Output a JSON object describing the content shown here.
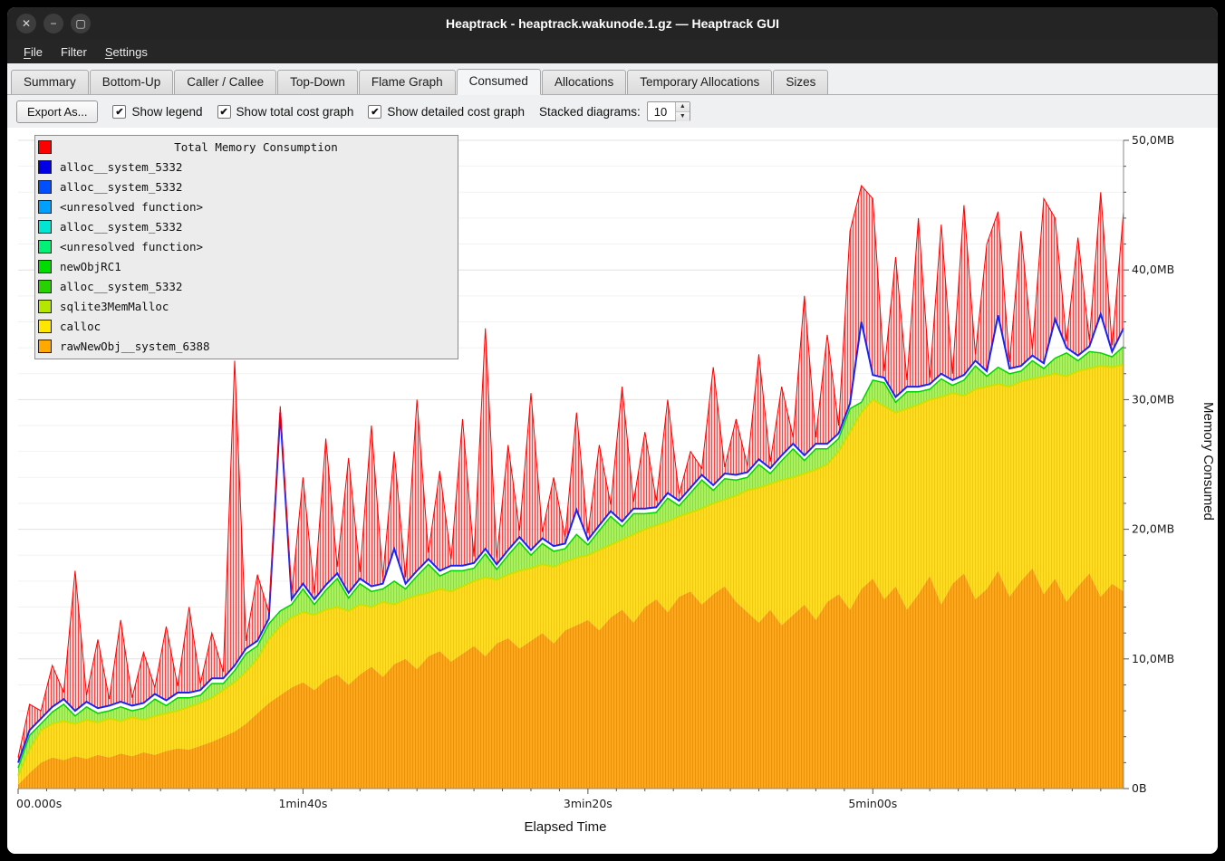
{
  "window": {
    "title": "Heaptrack - heaptrack.wakunode.1.gz — Heaptrack GUI",
    "controls": [
      {
        "name": "close",
        "glyph": "✕"
      },
      {
        "name": "minimize",
        "glyph": "−"
      },
      {
        "name": "maximize",
        "glyph": "▢"
      }
    ]
  },
  "menu": {
    "items": [
      {
        "label": "File",
        "underline": 0
      },
      {
        "label": "Filter",
        "underline": -1
      },
      {
        "label": "Settings",
        "underline": 0
      }
    ]
  },
  "tabs": [
    {
      "label": "Summary",
      "active": false
    },
    {
      "label": "Bottom-Up",
      "active": false
    },
    {
      "label": "Caller / Callee",
      "active": false
    },
    {
      "label": "Top-Down",
      "active": false
    },
    {
      "label": "Flame Graph",
      "active": false
    },
    {
      "label": "Consumed",
      "active": true
    },
    {
      "label": "Allocations",
      "active": false
    },
    {
      "label": "Temporary Allocations",
      "active": false
    },
    {
      "label": "Sizes",
      "active": false
    }
  ],
  "toolbar": {
    "export_label": "Export As...",
    "check_glyph": "✔",
    "checkboxes": [
      {
        "label": "Show legend",
        "checked": true
      },
      {
        "label": "Show total cost graph",
        "checked": true
      },
      {
        "label": "Show detailed cost graph",
        "checked": true
      }
    ],
    "stacked_label": "Stacked diagrams:",
    "stacked_value": "10",
    "spin_up_glyph": "▲",
    "spin_down_glyph": "▼"
  },
  "legend": {
    "title": "Total Memory Consumption",
    "title_color": "#ff0000",
    "entries": [
      {
        "label": "alloc__system_5332",
        "color": "#0000e6"
      },
      {
        "label": "alloc__system_5332",
        "color": "#0050ff"
      },
      {
        "label": "<unresolved function>",
        "color": "#00a0ff"
      },
      {
        "label": "alloc__system_5332",
        "color": "#00e6d2"
      },
      {
        "label": "<unresolved function>",
        "color": "#00f078"
      },
      {
        "label": "newObjRC1",
        "color": "#00dc00"
      },
      {
        "label": "alloc__system_5332",
        "color": "#28d200"
      },
      {
        "label": "sqlite3MemMalloc",
        "color": "#b4e600"
      },
      {
        "label": "calloc",
        "color": "#ffe600"
      },
      {
        "label": "rawNewObj__system_6388",
        "color": "#ffa800"
      }
    ]
  },
  "chart_data": {
    "type": "area",
    "title": "Total Memory Consumption",
    "xlabel": "Elapsed Time",
    "ylabel": "Memory Consumed",
    "ylim": [
      0,
      50
    ],
    "y_unit": "MB",
    "t_step_s": 4,
    "t_max_s": 388,
    "stacking": "series values are cumulative stacked tops in MB, sampled every t_step_s seconds",
    "y_tick_labels": [
      "0B",
      "10,0MB",
      "20,0MB",
      "30,0MB",
      "40,0MB",
      "50,0MB"
    ],
    "x_ticks": [
      {
        "t": 0,
        "label": "00.000s"
      },
      {
        "t": 100,
        "label": "1min40s"
      },
      {
        "t": 200,
        "label": "3min20s"
      },
      {
        "t": 300,
        "label": "5min00s"
      }
    ],
    "series": [
      {
        "name": "rawNewObj__system_6388",
        "kind": "stacked-area",
        "color": "#ffa81e",
        "values": [
          0.3,
          1.2,
          2.0,
          2.4,
          2.2,
          2.5,
          2.3,
          2.6,
          2.4,
          2.7,
          2.5,
          2.8,
          2.6,
          2.9,
          3.1,
          3.0,
          3.3,
          3.6,
          4.0,
          4.4,
          5.0,
          5.8,
          6.6,
          7.2,
          7.8,
          8.2,
          7.6,
          8.4,
          8.8,
          8.0,
          8.8,
          9.4,
          8.6,
          9.6,
          10.0,
          9.2,
          10.2,
          10.6,
          9.8,
          10.4,
          11.0,
          10.2,
          11.2,
          11.6,
          10.8,
          11.4,
          12.0,
          11.2,
          12.2,
          12.6,
          13.0,
          12.2,
          13.2,
          13.8,
          12.8,
          14.0,
          14.6,
          13.6,
          14.8,
          15.2,
          14.2,
          15.0,
          15.6,
          14.4,
          13.6,
          12.8,
          13.8,
          12.6,
          13.4,
          14.2,
          13.0,
          14.4,
          15.0,
          13.8,
          15.4,
          16.2,
          14.6,
          15.6,
          13.8,
          15.0,
          16.4,
          14.2,
          15.8,
          16.6,
          14.6,
          15.4,
          16.8,
          14.8,
          16.0,
          17.0,
          15.0,
          16.2,
          14.4,
          15.6,
          16.6,
          14.8,
          15.8,
          15.2
        ]
      },
      {
        "name": "calloc",
        "kind": "stacked-area",
        "color": "#ffdd22",
        "values": [
          1.0,
          3.0,
          4.5,
          5.0,
          5.2,
          5.0,
          5.3,
          5.1,
          5.4,
          5.2,
          5.5,
          5.3,
          5.6,
          5.8,
          6.0,
          6.3,
          6.6,
          7.0,
          7.6,
          8.2,
          9.0,
          10.0,
          11.5,
          12.5,
          13.2,
          13.6,
          13.4,
          13.8,
          14.0,
          13.7,
          14.2,
          14.0,
          14.4,
          14.2,
          14.6,
          14.9,
          15.1,
          15.4,
          15.2,
          15.6,
          16.0,
          16.3,
          16.1,
          16.5,
          16.8,
          17.0,
          17.3,
          17.1,
          17.5,
          17.8,
          18.0,
          18.4,
          18.8,
          19.2,
          19.6,
          20.0,
          20.3,
          20.6,
          21.0,
          21.3,
          21.6,
          22.0,
          22.3,
          22.6,
          23.0,
          23.2,
          23.5,
          23.8,
          24.0,
          24.3,
          24.6,
          25.0,
          26.0,
          27.5,
          29.0,
          30.0,
          29.5,
          29.0,
          29.3,
          29.6,
          30.0,
          30.2,
          30.5,
          30.3,
          30.8,
          31.0,
          31.2,
          31.0,
          31.4,
          31.6,
          31.8,
          32.0,
          31.8,
          32.2,
          32.4,
          32.6,
          32.5,
          32.7
        ]
      },
      {
        "name": "green band (sqlite3MemMalloc / newObjRC1 / alloc__system_5332 / <unresolved function>)",
        "kind": "stacked-area",
        "color": "#abf163",
        "values": [
          1.6,
          4.1,
          5.0,
          5.9,
          6.5,
          5.6,
          6.3,
          5.8,
          6.0,
          6.3,
          6.0,
          6.2,
          6.9,
          6.4,
          7.0,
          7.0,
          7.2,
          8.1,
          8.1,
          9.1,
          10.4,
          11.0,
          12.7,
          13.7,
          14.2,
          15.4,
          14.2,
          15.3,
          16.2,
          14.7,
          15.8,
          15.2,
          15.4,
          16.0,
          15.4,
          16.4,
          17.3,
          16.4,
          16.8,
          16.8,
          17.0,
          18.1,
          16.9,
          18.0,
          19.0,
          18.0,
          18.9,
          18.3,
          18.5,
          19.6,
          18.8,
          19.9,
          21.0,
          20.2,
          21.2,
          21.2,
          21.3,
          22.4,
          21.8,
          22.8,
          23.8,
          23.0,
          23.9,
          23.8,
          24.0,
          25.0,
          24.3,
          25.3,
          26.2,
          25.3,
          26.2,
          26.2,
          27.0,
          29.3,
          29.8,
          31.5,
          31.3,
          29.8,
          30.6,
          30.6,
          30.8,
          31.6,
          31.1,
          31.5,
          32.6,
          31.8,
          32.5,
          32.0,
          32.2,
          33.0,
          32.4,
          33.2,
          33.6,
          33.0,
          33.7,
          33.6,
          33.3,
          34.1
        ]
      },
      {
        "name": "alloc__system_5332",
        "kind": "line",
        "color": "#1a23f0",
        "values": [
          2.0,
          4.5,
          5.4,
          6.3,
          6.9,
          6.0,
          6.7,
          6.2,
          6.4,
          6.7,
          6.4,
          6.6,
          7.3,
          6.8,
          7.4,
          7.4,
          7.6,
          8.5,
          8.5,
          9.5,
          10.8,
          11.4,
          13.1,
          29.0,
          14.6,
          15.8,
          14.6,
          15.7,
          16.6,
          15.1,
          16.2,
          15.6,
          15.8,
          18.5,
          15.8,
          16.8,
          17.7,
          16.8,
          17.2,
          17.2,
          17.4,
          18.5,
          17.3,
          18.4,
          19.4,
          18.4,
          19.3,
          18.7,
          18.9,
          21.5,
          19.2,
          20.3,
          21.4,
          20.6,
          21.6,
          21.6,
          21.7,
          22.8,
          22.2,
          23.2,
          24.2,
          23.4,
          24.3,
          24.2,
          24.4,
          25.4,
          24.7,
          25.7,
          26.6,
          25.7,
          26.6,
          26.6,
          27.4,
          29.7,
          36.0,
          31.9,
          31.7,
          30.2,
          31.0,
          31.0,
          31.2,
          32.0,
          31.5,
          31.9,
          33.0,
          32.2,
          36.5,
          32.4,
          32.6,
          33.4,
          32.8,
          36.2,
          34.0,
          33.4,
          34.1,
          36.6,
          33.7,
          35.5
        ]
      },
      {
        "name": "Total Memory Consumption",
        "kind": "hatched-area",
        "color": "#ff0000",
        "values": [
          2.4,
          6.5,
          6.0,
          9.5,
          7.4,
          16.8,
          7.2,
          11.5,
          6.9,
          13.0,
          7.0,
          10.5,
          7.8,
          12.5,
          7.9,
          14.0,
          8.1,
          12.0,
          9.0,
          33.0,
          11.4,
          16.5,
          13.6,
          29.5,
          15.1,
          24.0,
          15.1,
          27.0,
          17.1,
          25.5,
          16.7,
          28.0,
          16.3,
          26.0,
          16.3,
          30.0,
          18.2,
          24.5,
          17.7,
          28.5,
          17.9,
          35.5,
          17.8,
          26.5,
          19.9,
          30.5,
          19.8,
          24.0,
          19.4,
          29.0,
          19.7,
          26.5,
          21.9,
          31.0,
          22.1,
          27.5,
          22.2,
          30.0,
          22.7,
          26.0,
          24.7,
          32.5,
          24.8,
          28.5,
          24.9,
          33.5,
          25.2,
          31.0,
          27.1,
          38.0,
          27.1,
          35.0,
          28.0,
          43.0,
          46.5,
          45.5,
          32.2,
          41.0,
          31.5,
          44.0,
          31.7,
          43.5,
          32.0,
          45.0,
          33.5,
          42.0,
          44.5,
          32.9,
          43.0,
          33.9,
          45.5,
          44.0,
          34.5,
          42.5,
          34.6,
          46.0,
          34.2,
          44.5
        ]
      }
    ]
  }
}
